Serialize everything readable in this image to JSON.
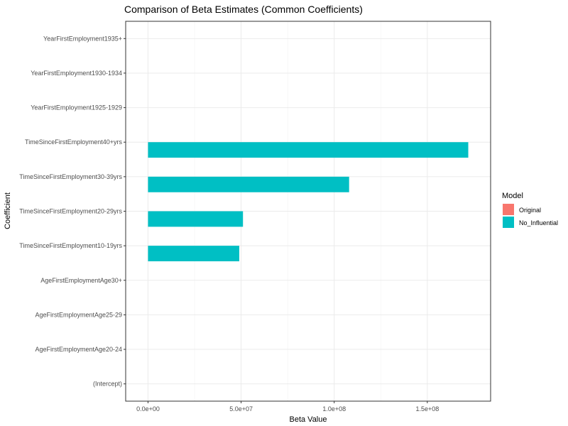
{
  "chart_data": {
    "type": "bar",
    "orientation": "horizontal",
    "title": "Comparison of Beta Estimates (Common Coefficients)",
    "xlabel": "Beta Value",
    "ylabel": "Coefficient",
    "xlim": [
      -12000000,
      184000000
    ],
    "x_ticks": [
      0,
      50000000,
      100000000,
      150000000
    ],
    "x_tick_labels": [
      "0.0e+00",
      "5.0e+07",
      "1.0e+08",
      "1.5e+08"
    ],
    "grid": true,
    "legend": {
      "title": "Model",
      "position": "right"
    },
    "categories": [
      "(Intercept)",
      "AgeFirstEmploymentAge20-24",
      "AgeFirstEmploymentAge25-29",
      "AgeFirstEmploymentAge30+",
      "TimeSinceFirstEmployment10-19yrs",
      "TimeSinceFirstEmployment20-29yrs",
      "TimeSinceFirstEmployment30-39yrs",
      "TimeSinceFirstEmployment40+yrs",
      "YearFirstEmployment1925-1929",
      "YearFirstEmployment1930-1934",
      "YearFirstEmployment1935+"
    ],
    "series": [
      {
        "name": "Original",
        "color": "#F8766D",
        "values": [
          0,
          0,
          0,
          0,
          0,
          0,
          0,
          0,
          0,
          0,
          0
        ]
      },
      {
        "name": "No_Influential",
        "color": "#00BFC4",
        "values": [
          0,
          0,
          0,
          0,
          49000000,
          51000000,
          108000000,
          172000000,
          0,
          0,
          0
        ]
      }
    ]
  }
}
